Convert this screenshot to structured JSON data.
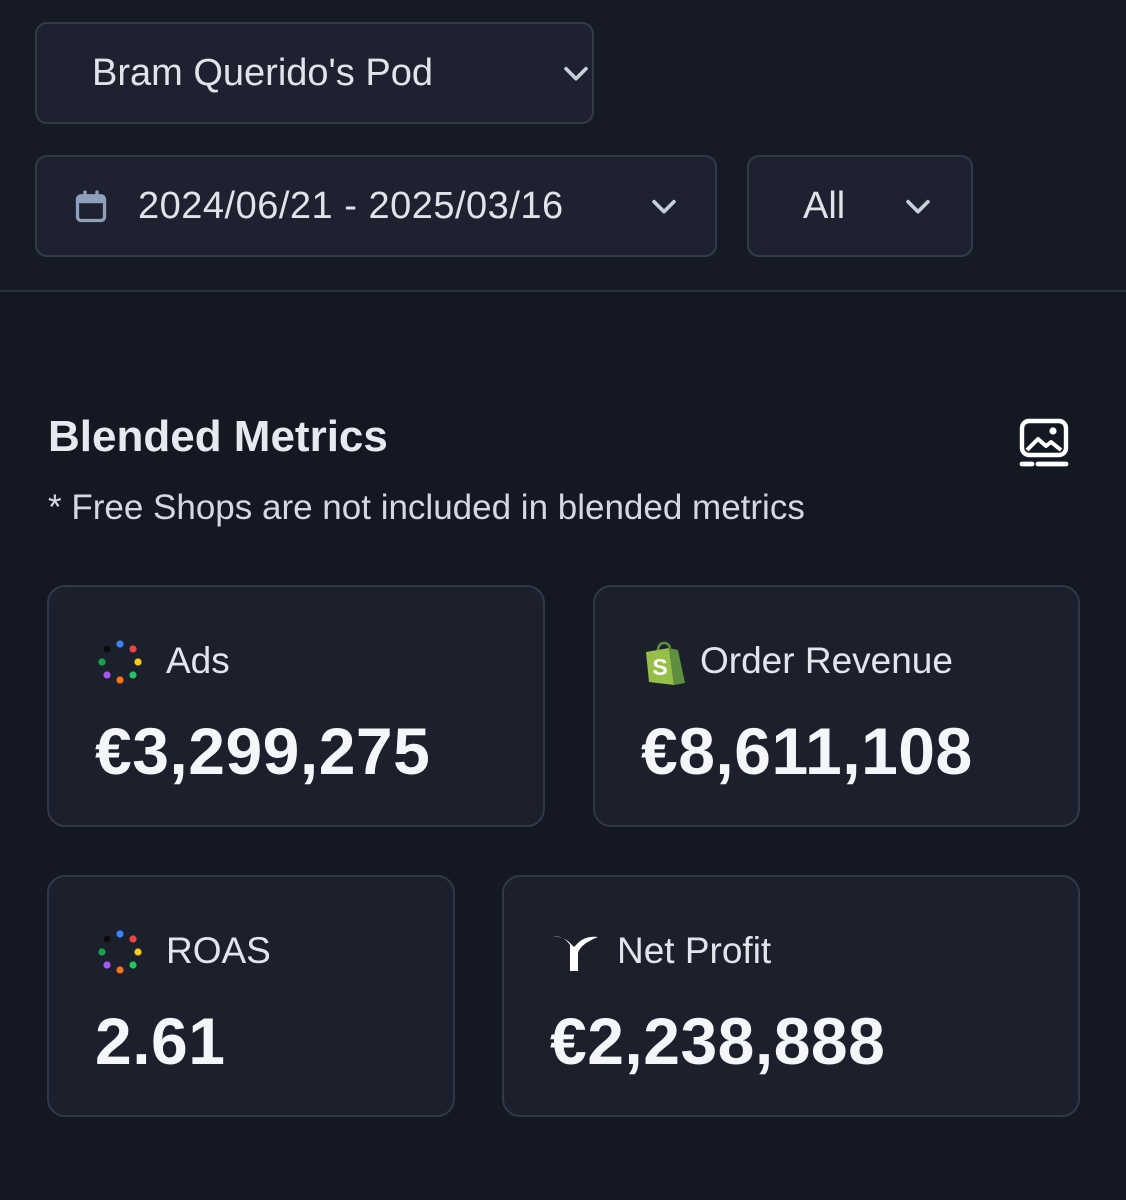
{
  "header": {
    "pod_select": {
      "value": "Bram Querido's Pod",
      "icon": "chevron-down-icon"
    },
    "date_range_select": {
      "value": "2024/06/21 - 2025/03/16",
      "icon": "calendar-icon"
    },
    "filter_select": {
      "value": "All",
      "icon": "chevron-down-icon"
    }
  },
  "section": {
    "title": "Blended Metrics",
    "note": "* Free Shops are not included in blended metrics",
    "export_icon": "image-export-icon"
  },
  "metrics": [
    {
      "label": "Ads",
      "value": "€3,299,275",
      "icon": "ads-dots-icon"
    },
    {
      "label": "Order Revenue",
      "value": "€8,611,108",
      "icon": "shopify-bag-icon"
    },
    {
      "label": "ROAS",
      "value": "2.61",
      "icon": "ads-dots-icon"
    },
    {
      "label": "Net Profit",
      "value": "€2,238,888",
      "icon": "triple-whale-icon"
    }
  ],
  "colors": {
    "background": "#141822",
    "card": "#1c202c",
    "card_border": "#313848",
    "shopify_green": "#95bf47"
  }
}
